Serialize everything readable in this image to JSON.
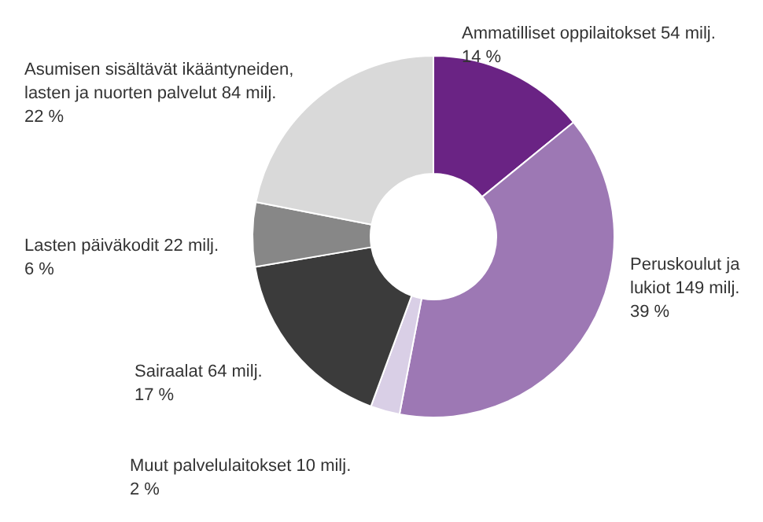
{
  "chart_data": {
    "type": "donut",
    "categories": [
      "Ammatilliset oppilaitokset",
      "Peruskoulut ja\nlukiot",
      "Muut palvelulaitokset",
      "Sairaalat",
      "Lasten päiväkodit",
      "Asumisen sisältävät ikääntyneiden,\nlasten ja nuorten palvelut"
    ],
    "values": [
      54,
      149,
      10,
      64,
      22,
      84
    ],
    "value_labels": [
      "54 milj.\n14 %",
      "149 milj.\n39 %",
      "10 milj.\n2 %",
      "64 milj.\n17 %",
      "22 milj.\n6 %",
      "84 milj.\n22 %"
    ],
    "colors": [
      "#6a2384",
      "#9d78b4",
      "#d9cfe6",
      "#3b3b3b",
      "#878787",
      "#d9d9d9"
    ]
  }
}
